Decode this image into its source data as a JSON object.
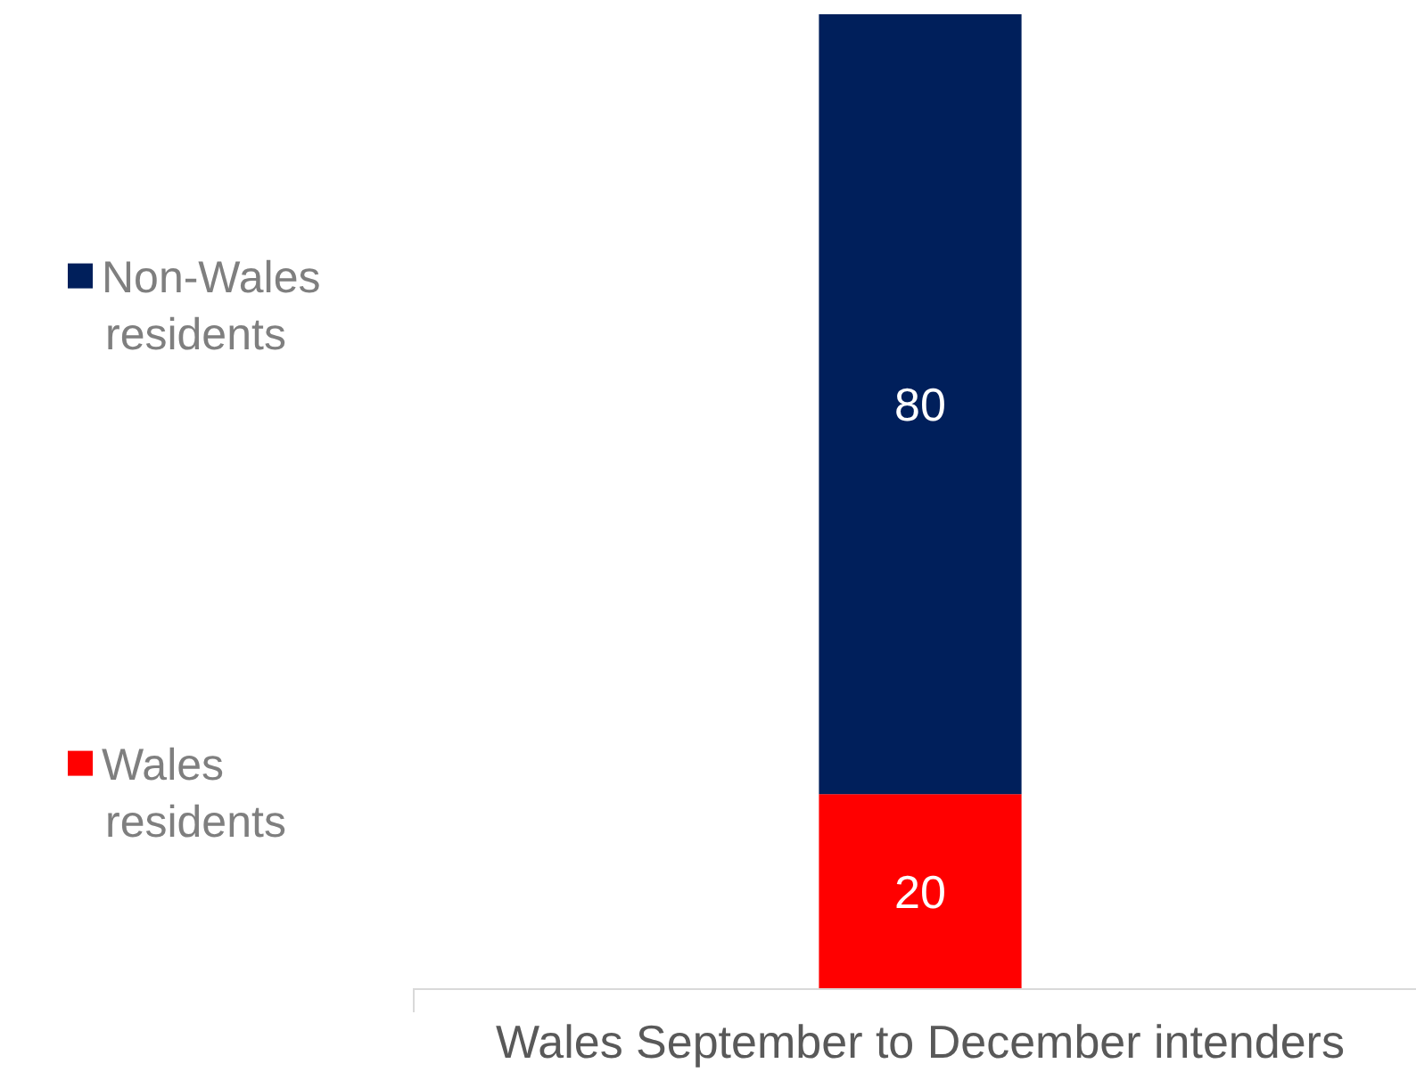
{
  "chart_data": {
    "type": "bar",
    "stacked": true,
    "categories": [
      "Wales September to December intenders"
    ],
    "series": [
      {
        "name": "Wales residents",
        "color": "#ff0000",
        "values": [
          20
        ]
      },
      {
        "name": "Non-Wales residents",
        "color": "#001f5b",
        "values": [
          80
        ]
      }
    ],
    "data_labels": true,
    "legend": "left"
  }
}
